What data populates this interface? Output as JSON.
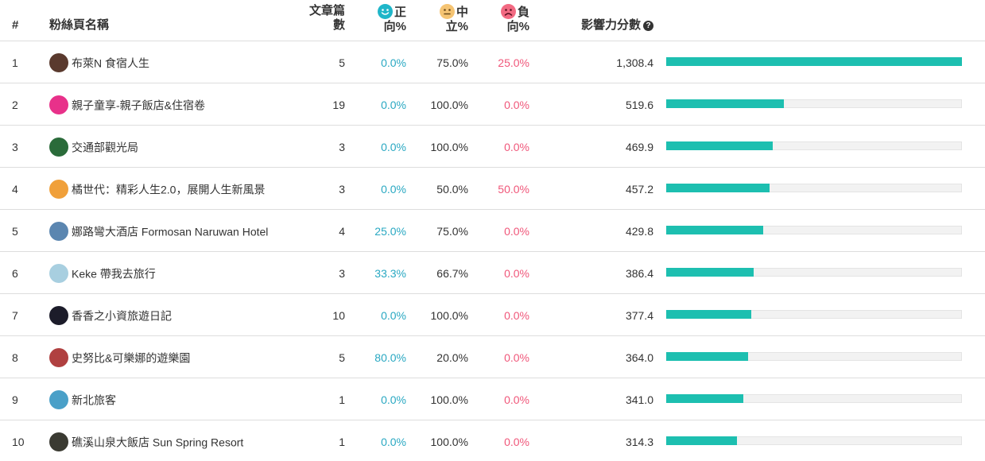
{
  "header": {
    "rank": "#",
    "name": "粉絲頁名稱",
    "posts_line1": "文章篇",
    "posts_line2": "數",
    "pos_line1": "正",
    "pos_line2": "向%",
    "neu_line1": "中",
    "neu_line2": "立%",
    "neg_line1": "負",
    "neg_line2": "向%",
    "score": "影響力分數",
    "help_glyph": "?"
  },
  "colors": {
    "positive": "#29a8c2",
    "negative": "#f0577a",
    "bar": "#1dbfb0"
  },
  "max_score": 1308.4,
  "rows": [
    {
      "rank": "1",
      "name": "布萊N 食宿人生",
      "posts": "5",
      "pos": "0.0%",
      "neu": "75.0%",
      "neg": "25.0%",
      "score_text": "1,308.4",
      "score": 1308.4,
      "avatar": "#5a3a2e"
    },
    {
      "rank": "2",
      "name": "親子童享-親子飯店&住宿卷",
      "posts": "19",
      "pos": "0.0%",
      "neu": "100.0%",
      "neg": "0.0%",
      "score_text": "519.6",
      "score": 519.6,
      "avatar": "#e8318a"
    },
    {
      "rank": "3",
      "name": "交通部觀光局",
      "posts": "3",
      "pos": "0.0%",
      "neu": "100.0%",
      "neg": "0.0%",
      "score_text": "469.9",
      "score": 469.9,
      "avatar": "#2a6b3a"
    },
    {
      "rank": "4",
      "name": "橘世代：精彩人生2.0，展開人生新風景",
      "posts": "3",
      "pos": "0.0%",
      "neu": "50.0%",
      "neg": "50.0%",
      "score_text": "457.2",
      "score": 457.2,
      "avatar": "#f0a03a"
    },
    {
      "rank": "5",
      "name": "娜路彎大酒店 Formosan Naruwan Hotel",
      "posts": "4",
      "pos": "25.0%",
      "neu": "75.0%",
      "neg": "0.0%",
      "score_text": "429.8",
      "score": 429.8,
      "avatar": "#5b86b0"
    },
    {
      "rank": "6",
      "name": "Keke 帶我去旅行",
      "posts": "3",
      "pos": "33.3%",
      "neu": "66.7%",
      "neg": "0.0%",
      "score_text": "386.4",
      "score": 386.4,
      "avatar": "#a8cfe0"
    },
    {
      "rank": "7",
      "name": "香香之小資旅遊日記",
      "posts": "10",
      "pos": "0.0%",
      "neu": "100.0%",
      "neg": "0.0%",
      "score_text": "377.4",
      "score": 377.4,
      "avatar": "#1c1c2a"
    },
    {
      "rank": "8",
      "name": "史努比&可樂娜的遊樂園",
      "posts": "5",
      "pos": "80.0%",
      "neu": "20.0%",
      "neg": "0.0%",
      "score_text": "364.0",
      "score": 364.0,
      "avatar": "#b04040"
    },
    {
      "rank": "9",
      "name": "新北旅客",
      "posts": "1",
      "pos": "0.0%",
      "neu": "100.0%",
      "neg": "0.0%",
      "score_text": "341.0",
      "score": 341.0,
      "avatar": "#4aa0c8"
    },
    {
      "rank": "10",
      "name": "礁溪山泉大飯店 Sun Spring Resort",
      "posts": "1",
      "pos": "0.0%",
      "neu": "100.0%",
      "neg": "0.0%",
      "score_text": "314.3",
      "score": 314.3,
      "avatar": "#3a3a32"
    }
  ]
}
